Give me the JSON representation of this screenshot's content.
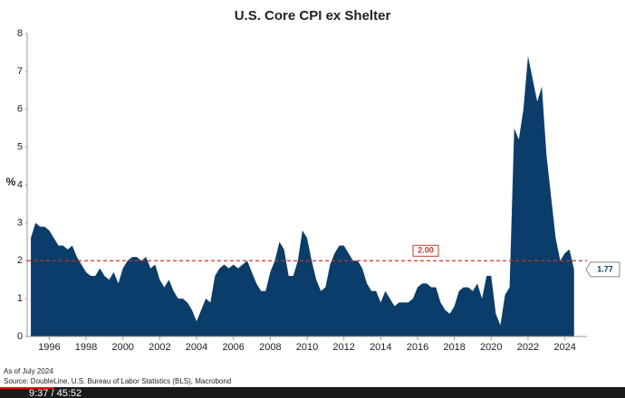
{
  "chart_data": {
    "type": "area",
    "title": "U.S. Core CPI ex Shelter",
    "y_label": "%",
    "color": "#0b3d6b",
    "x": [
      1995.0,
      1995.25,
      1995.5,
      1995.75,
      1996.0,
      1996.25,
      1996.5,
      1996.75,
      1997.0,
      1997.25,
      1997.5,
      1997.75,
      1998.0,
      1998.25,
      1998.5,
      1998.75,
      1999.0,
      1999.25,
      1999.5,
      1999.75,
      2000.0,
      2000.25,
      2000.5,
      2000.75,
      2001.0,
      2001.25,
      2001.5,
      2001.75,
      2002.0,
      2002.25,
      2002.5,
      2002.75,
      2003.0,
      2003.25,
      2003.5,
      2003.75,
      2004.0,
      2004.25,
      2004.5,
      2004.75,
      2005.0,
      2005.25,
      2005.5,
      2005.75,
      2006.0,
      2006.25,
      2006.5,
      2006.75,
      2007.0,
      2007.25,
      2007.5,
      2007.75,
      2008.0,
      2008.25,
      2008.5,
      2008.75,
      2009.0,
      2009.25,
      2009.5,
      2009.75,
      2010.0,
      2010.25,
      2010.5,
      2010.75,
      2011.0,
      2011.25,
      2011.5,
      2011.75,
      2012.0,
      2012.25,
      2012.5,
      2012.75,
      2013.0,
      2013.25,
      2013.5,
      2013.75,
      2014.0,
      2014.25,
      2014.5,
      2014.75,
      2015.0,
      2015.25,
      2015.5,
      2015.75,
      2016.0,
      2016.25,
      2016.5,
      2016.75,
      2017.0,
      2017.25,
      2017.5,
      2017.75,
      2018.0,
      2018.25,
      2018.5,
      2018.75,
      2019.0,
      2019.25,
      2019.5,
      2019.75,
      2020.0,
      2020.25,
      2020.5,
      2020.75,
      2021.0,
      2021.25,
      2021.5,
      2021.75,
      2022.0,
      2022.25,
      2022.5,
      2022.75,
      2023.0,
      2023.25,
      2023.5,
      2023.75,
      2024.0,
      2024.25,
      2024.5
    ],
    "values": [
      2.6,
      3.0,
      2.9,
      2.9,
      2.8,
      2.6,
      2.4,
      2.4,
      2.3,
      2.4,
      2.1,
      1.9,
      1.7,
      1.6,
      1.6,
      1.8,
      1.6,
      1.5,
      1.7,
      1.4,
      1.8,
      2.0,
      2.1,
      2.1,
      2.0,
      2.1,
      1.8,
      1.9,
      1.5,
      1.3,
      1.5,
      1.2,
      1.0,
      1.0,
      0.9,
      0.7,
      0.4,
      0.7,
      1.0,
      0.9,
      1.6,
      1.8,
      1.9,
      1.8,
      1.9,
      1.8,
      1.9,
      2.0,
      1.7,
      1.4,
      1.2,
      1.2,
      1.7,
      2.0,
      2.5,
      2.3,
      1.6,
      1.6,
      2.0,
      2.8,
      2.6,
      2.0,
      1.5,
      1.2,
      1.3,
      1.9,
      2.2,
      2.4,
      2.4,
      2.2,
      2.0,
      2.0,
      1.8,
      1.4,
      1.2,
      1.2,
      0.9,
      1.2,
      1.0,
      0.8,
      0.9,
      0.9,
      0.9,
      1.0,
      1.3,
      1.4,
      1.4,
      1.3,
      1.3,
      0.9,
      0.7,
      0.6,
      0.8,
      1.2,
      1.3,
      1.3,
      1.2,
      1.4,
      1.0,
      1.6,
      1.6,
      0.6,
      0.3,
      1.1,
      1.3,
      5.5,
      5.2,
      6.0,
      7.4,
      6.8,
      6.2,
      6.6,
      4.8,
      3.7,
      2.6,
      2.0,
      2.2,
      2.3,
      1.77
    ],
    "end_label": "1.77",
    "reference_line": {
      "value": 2,
      "label": "2.00",
      "color": "#c0392b"
    },
    "xlim": [
      1994.8,
      2025.2
    ],
    "xticks": [
      1996,
      1998,
      2000,
      2002,
      2004,
      2006,
      2008,
      2010,
      2012,
      2014,
      2016,
      2018,
      2020,
      2022,
      2024
    ],
    "ylim": [
      0,
      8
    ],
    "yticks": [
      0,
      1,
      2,
      3,
      4,
      5,
      6,
      7,
      8
    ]
  },
  "footer": {
    "as_of": "As of July 2024",
    "source": "Source: DoubleLine, U.S. Bureau of Labor Statistics (BLS), Macrobond"
  },
  "player": {
    "time": "9:37 / 45:52"
  }
}
